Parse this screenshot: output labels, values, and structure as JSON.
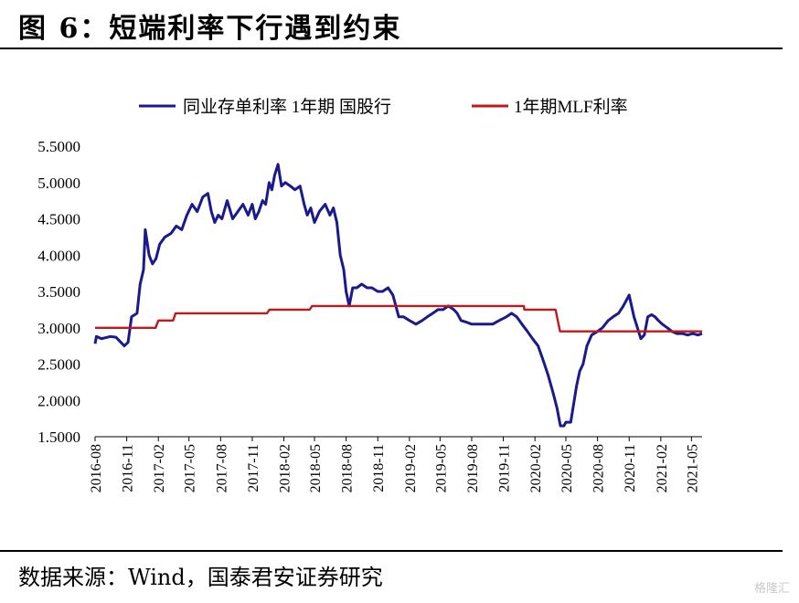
{
  "header": {
    "title": "图 6：短端利率下行遇到约束"
  },
  "footer": {
    "source": "数据来源：Wind，国泰君安证券研究"
  },
  "watermark": "格隆汇",
  "chart_data": {
    "type": "line",
    "title": "",
    "xlabel": "",
    "ylabel": "",
    "ylim": [
      1.5,
      5.5
    ],
    "yticks": [
      "5.5000",
      "5.0000",
      "4.5000",
      "4.0000",
      "3.5000",
      "3.0000",
      "2.5000",
      "2.0000",
      "1.5000"
    ],
    "xlim": [
      "2016-08",
      "2021-06"
    ],
    "xticks": [
      "2016-08",
      "2016-11",
      "2017-02",
      "2017-05",
      "2017-08",
      "2017-11",
      "2018-02",
      "2018-05",
      "2018-08",
      "2018-11",
      "2019-02",
      "2019-05",
      "2019-08",
      "2019-11",
      "2020-02",
      "2020-05",
      "2020-08",
      "2020-11",
      "2021-02",
      "2021-05"
    ],
    "legend": "top",
    "grid": false,
    "colors": {
      "interbank": "#1a1a8c",
      "mlf": "#c0191c"
    },
    "series": [
      {
        "name": "同业存单利率 1年期 国股行",
        "x": [
          "2016-08-01",
          "2016-08-05",
          "2016-08-20",
          "2016-09-15",
          "2016-10-01",
          "2016-10-15",
          "2016-10-25",
          "2016-11-05",
          "2016-11-15",
          "2016-12-01",
          "2016-12-10",
          "2016-12-20",
          "2016-12-25",
          "2017-01-05",
          "2017-01-15",
          "2017-01-25",
          "2017-02-05",
          "2017-02-20",
          "2017-03-10",
          "2017-03-25",
          "2017-04-10",
          "2017-04-25",
          "2017-05-10",
          "2017-05-25",
          "2017-06-10",
          "2017-06-25",
          "2017-07-05",
          "2017-07-15",
          "2017-07-25",
          "2017-08-05",
          "2017-08-20",
          "2017-09-05",
          "2017-09-20",
          "2017-10-05",
          "2017-10-20",
          "2017-11-01",
          "2017-11-10",
          "2017-11-20",
          "2017-12-01",
          "2017-12-10",
          "2017-12-20",
          "2017-12-28",
          "2018-01-05",
          "2018-01-15",
          "2018-01-25",
          "2018-02-05",
          "2018-02-20",
          "2018-03-05",
          "2018-03-20",
          "2018-04-01",
          "2018-04-10",
          "2018-04-20",
          "2018-05-01",
          "2018-05-15",
          "2018-06-01",
          "2018-06-15",
          "2018-06-25",
          "2018-07-05",
          "2018-07-15",
          "2018-07-25",
          "2018-08-01",
          "2018-08-10",
          "2018-08-20",
          "2018-09-01",
          "2018-09-15",
          "2018-10-01",
          "2018-10-15",
          "2018-11-01",
          "2018-11-15",
          "2018-12-01",
          "2018-12-15",
          "2019-01-01",
          "2019-01-15",
          "2019-02-01",
          "2019-02-20",
          "2019-03-10",
          "2019-03-25",
          "2019-04-10",
          "2019-04-25",
          "2019-05-10",
          "2019-05-25",
          "2019-06-10",
          "2019-06-20",
          "2019-07-01",
          "2019-07-15",
          "2019-08-01",
          "2019-08-20",
          "2019-09-10",
          "2019-10-01",
          "2019-10-20",
          "2019-11-10",
          "2019-11-25",
          "2019-12-10",
          "2019-12-25",
          "2020-01-10",
          "2020-01-25",
          "2020-02-10",
          "2020-02-25",
          "2020-03-10",
          "2020-03-25",
          "2020-04-05",
          "2020-04-15",
          "2020-04-25",
          "2020-05-01",
          "2020-05-15",
          "2020-06-01",
          "2020-06-10",
          "2020-06-20",
          "2020-07-01",
          "2020-07-15",
          "2020-08-01",
          "2020-08-15",
          "2020-09-01",
          "2020-09-15",
          "2020-10-01",
          "2020-10-15",
          "2020-11-01",
          "2020-11-15",
          "2020-11-25",
          "2020-12-05",
          "2020-12-15",
          "2020-12-25",
          "2021-01-05",
          "2021-01-15",
          "2021-01-25",
          "2021-02-05",
          "2021-02-20",
          "2021-03-05",
          "2021-03-20",
          "2021-04-05",
          "2021-04-20",
          "2021-05-05",
          "2021-05-20",
          "2021-06-01"
        ],
        "values": [
          2.78,
          2.88,
          2.85,
          2.88,
          2.87,
          2.8,
          2.75,
          2.8,
          3.15,
          3.2,
          3.6,
          3.8,
          4.35,
          4.0,
          3.88,
          3.95,
          4.15,
          4.25,
          4.3,
          4.4,
          4.35,
          4.55,
          4.7,
          4.6,
          4.8,
          4.85,
          4.6,
          4.45,
          4.55,
          4.5,
          4.75,
          4.5,
          4.6,
          4.7,
          4.55,
          4.7,
          4.5,
          4.6,
          4.75,
          4.7,
          5.0,
          4.9,
          5.1,
          5.25,
          4.95,
          5.0,
          4.95,
          4.9,
          4.95,
          4.7,
          4.55,
          4.65,
          4.45,
          4.6,
          4.7,
          4.55,
          4.65,
          4.45,
          4.0,
          3.8,
          3.5,
          3.3,
          3.55,
          3.55,
          3.6,
          3.55,
          3.55,
          3.5,
          3.5,
          3.55,
          3.45,
          3.15,
          3.15,
          3.1,
          3.05,
          3.1,
          3.15,
          3.2,
          3.25,
          3.25,
          3.3,
          3.25,
          3.2,
          3.1,
          3.08,
          3.05,
          3.05,
          3.05,
          3.05,
          3.1,
          3.15,
          3.2,
          3.15,
          3.05,
          2.95,
          2.85,
          2.75,
          2.55,
          2.35,
          2.1,
          1.9,
          1.65,
          1.65,
          1.7,
          1.7,
          2.2,
          2.4,
          2.5,
          2.75,
          2.9,
          2.95,
          3.0,
          3.1,
          3.15,
          3.2,
          3.3,
          3.45,
          3.15,
          3.0,
          2.85,
          2.9,
          3.15,
          3.18,
          3.15,
          3.1,
          3.05,
          3.0,
          2.95,
          2.92,
          2.92,
          2.9,
          2.92,
          2.9,
          2.92
        ]
      },
      {
        "name": "1年期MLF利率",
        "x": [
          "2016-08-01",
          "2017-01-24",
          "2017-02-01",
          "2017-03-16",
          "2017-03-23",
          "2017-12-14",
          "2017-12-21",
          "2018-04-17",
          "2018-04-24",
          "2019-12-31",
          "2020-01-01",
          "2020-04-01",
          "2020-04-14",
          "2021-06-01"
        ],
        "values": [
          3.0,
          3.0,
          3.1,
          3.1,
          3.2,
          3.2,
          3.25,
          3.25,
          3.3,
          3.3,
          3.25,
          3.25,
          2.95,
          2.95
        ]
      }
    ]
  }
}
